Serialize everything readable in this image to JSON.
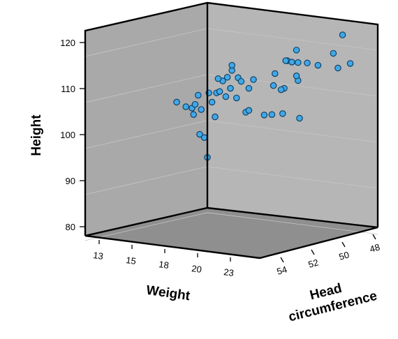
{
  "chart_data": {
    "type": "scatter3d",
    "title": "",
    "axes": {
      "height": {
        "label": "Height",
        "range": [
          78,
          125
        ],
        "ticks": [
          80,
          90,
          100,
          110,
          120
        ]
      },
      "weight": {
        "label": "Weight",
        "ticks": [
          13,
          15,
          18,
          20,
          23
        ]
      },
      "head_circumference": {
        "label_lines": [
          "Head",
          "circumference"
        ],
        "ticks": [
          48,
          50,
          52,
          54
        ]
      }
    },
    "colors": {
      "point_fill": "#40a8e8",
      "point_stroke": "#0a3a5e",
      "back_wall": "#b4b4b4",
      "floor": "#8e8e8e",
      "gridline": "#c6c6c6"
    },
    "grid": true,
    "note": "Points listed as [screen-derived horizontal offset in weight-units, height]; depth axis not recoverable from 2D projection.",
    "points": [
      [
        20.0,
        92
      ],
      [
        19.8,
        96.3
      ],
      [
        19.5,
        97
      ],
      [
        20.5,
        100.8
      ],
      [
        19.1,
        101.3
      ],
      [
        19.6,
        102.4
      ],
      [
        19.0,
        102.7
      ],
      [
        18.6,
        103
      ],
      [
        19.2,
        103.5
      ],
      [
        18.0,
        104
      ],
      [
        20.3,
        104
      ],
      [
        19.4,
        105.5
      ],
      [
        20.1,
        106
      ],
      [
        20.6,
        106
      ],
      [
        21.2,
        105.2
      ],
      [
        21.9,
        104.9
      ],
      [
        20.8,
        106.3
      ],
      [
        21.5,
        107
      ],
      [
        22.7,
        107
      ],
      [
        21.0,
        108.6
      ],
      [
        20.7,
        109.1
      ],
      [
        21.3,
        109.4
      ],
      [
        22.0,
        109.3
      ],
      [
        23.0,
        108.9
      ],
      [
        21.6,
        110.9
      ],
      [
        22.2,
        108.5
      ],
      [
        21.6,
        112
      ],
      [
        24.4,
        110.2
      ],
      [
        25.0,
        107
      ],
      [
        24.3,
        107.6
      ],
      [
        24.8,
        106.7
      ],
      [
        25.9,
        108.7
      ],
      [
        25.8,
        109.7
      ],
      [
        26.5,
        112.5
      ],
      [
        25.2,
        113
      ],
      [
        25.5,
        112.7
      ],
      [
        25.1,
        113
      ],
      [
        25.9,
        112.6
      ],
      [
        25.8,
        115.3
      ],
      [
        27.2,
        112
      ],
      [
        28.5,
        111.4
      ],
      [
        28.2,
        114.6
      ],
      [
        28.8,
        118.6
      ],
      [
        29.3,
        112.4
      ],
      [
        23.7,
        101.2
      ],
      [
        24.2,
        101.3
      ],
      [
        22.5,
        101.8
      ],
      [
        22.7,
        102.2
      ],
      [
        26.0,
        100.5
      ],
      [
        24.9,
        101.5
      ]
    ]
  }
}
